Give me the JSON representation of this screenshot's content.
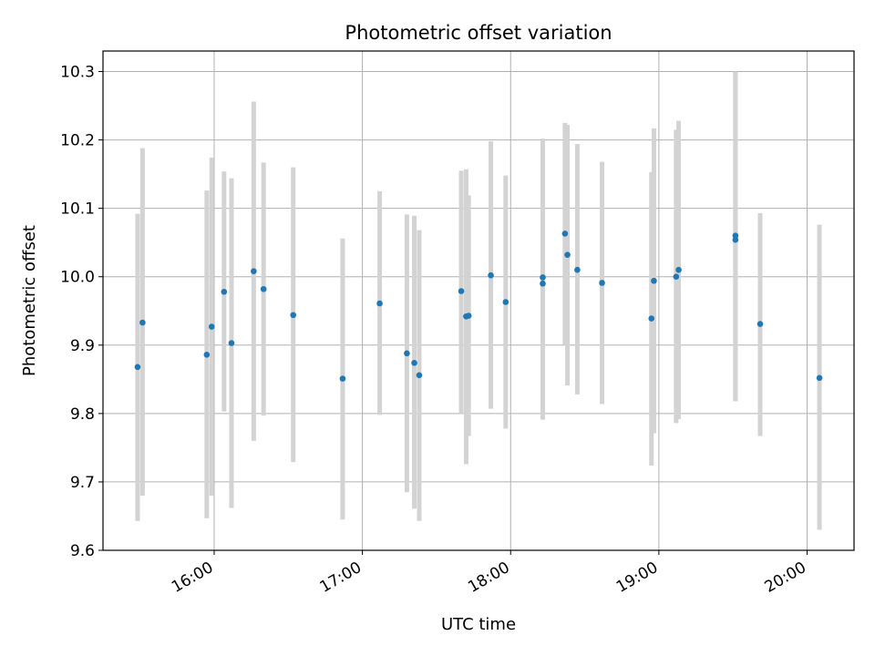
{
  "chart_data": {
    "type": "scatter",
    "title": "Photometric offset variation",
    "xlabel": "UTC time",
    "ylabel": "Photometric offset",
    "xlim": [
      "15:15",
      "20:19"
    ],
    "ylim": [
      9.6,
      10.33
    ],
    "x_ticks": [
      "16:00",
      "17:00",
      "18:00",
      "19:00",
      "20:00"
    ],
    "y_ticks": [
      9.6,
      9.7,
      9.8,
      9.9,
      10.0,
      10.1,
      10.2,
      10.3
    ],
    "grid": true,
    "colors": {
      "points": "#1f77b4",
      "errorbars": "#d3d3d3",
      "grid": "#b0b0b0"
    },
    "series": [
      {
        "points": [
          {
            "x": "15:29",
            "y": 9.868,
            "err_low": 9.643,
            "err_high": 10.092
          },
          {
            "x": "15:31",
            "y": 9.933,
            "err_low": 9.68,
            "err_high": 10.188
          },
          {
            "x": "15:57",
            "y": 9.886,
            "err_low": 9.647,
            "err_high": 10.126
          },
          {
            "x": "15:59",
            "y": 9.927,
            "err_low": 9.68,
            "err_high": 10.174
          },
          {
            "x": "16:04",
            "y": 9.978,
            "err_low": 9.803,
            "err_high": 10.154
          },
          {
            "x": "16:07",
            "y": 9.903,
            "err_low": 9.662,
            "err_high": 10.144
          },
          {
            "x": "16:16",
            "y": 10.008,
            "err_low": 9.76,
            "err_high": 10.256
          },
          {
            "x": "16:20",
            "y": 9.982,
            "err_low": 9.797,
            "err_high": 10.167
          },
          {
            "x": "16:32",
            "y": 9.944,
            "err_low": 9.729,
            "err_high": 10.16
          },
          {
            "x": "16:52",
            "y": 9.851,
            "err_low": 9.645,
            "err_high": 10.056
          },
          {
            "x": "17:07",
            "y": 9.961,
            "err_low": 9.798,
            "err_high": 10.125
          },
          {
            "x": "17:18",
            "y": 9.888,
            "err_low": 9.685,
            "err_high": 10.091
          },
          {
            "x": "17:21",
            "y": 9.874,
            "err_low": 9.661,
            "err_high": 10.089
          },
          {
            "x": "17:23",
            "y": 9.856,
            "err_low": 9.643,
            "err_high": 10.068
          },
          {
            "x": "17:40",
            "y": 9.979,
            "err_low": 9.8,
            "err_high": 10.155
          },
          {
            "x": "17:42",
            "y": 9.942,
            "err_low": 9.726,
            "err_high": 10.157
          },
          {
            "x": "17:43",
            "y": 9.943,
            "err_low": 9.767,
            "err_high": 10.119
          },
          {
            "x": "17:52",
            "y": 10.002,
            "err_low": 9.807,
            "err_high": 10.198
          },
          {
            "x": "17:58",
            "y": 9.963,
            "err_low": 9.778,
            "err_high": 10.148
          },
          {
            "x": "18:13",
            "y": 9.999,
            "err_low": 9.8,
            "err_high": 10.202
          },
          {
            "x": "18:13",
            "y": 9.99,
            "err_low": 9.791,
            "err_high": 10.19
          },
          {
            "x": "18:22",
            "y": 10.063,
            "err_low": 9.9,
            "err_high": 10.225
          },
          {
            "x": "18:23",
            "y": 10.032,
            "err_low": 9.841,
            "err_high": 10.222
          },
          {
            "x": "18:27",
            "y": 10.01,
            "err_low": 9.828,
            "err_high": 10.194
          },
          {
            "x": "18:37",
            "y": 9.991,
            "err_low": 9.814,
            "err_high": 10.168
          },
          {
            "x": "18:57",
            "y": 9.939,
            "err_low": 9.724,
            "err_high": 10.153
          },
          {
            "x": "18:58",
            "y": 9.994,
            "err_low": 9.771,
            "err_high": 10.217
          },
          {
            "x": "19:07",
            "y": 10.0,
            "err_low": 9.786,
            "err_high": 10.215
          },
          {
            "x": "19:08",
            "y": 10.01,
            "err_low": 9.792,
            "err_high": 10.228
          },
          {
            "x": "19:31",
            "y": 10.054,
            "err_low": 9.818,
            "err_high": 10.3
          },
          {
            "x": "19:31",
            "y": 10.06,
            "err_low": 9.818,
            "err_high": 10.3
          },
          {
            "x": "19:41",
            "y": 9.931,
            "err_low": 9.767,
            "err_high": 10.093
          },
          {
            "x": "20:05",
            "y": 9.852,
            "err_low": 9.63,
            "err_high": 10.076
          }
        ]
      }
    ]
  }
}
